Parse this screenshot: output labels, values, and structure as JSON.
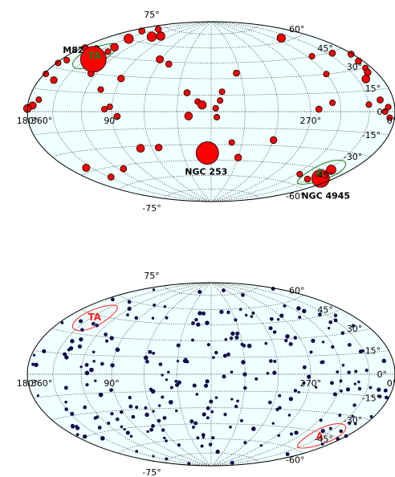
{
  "chart_data": [
    {
      "type": "scatter",
      "projection": "aitoff-hammer",
      "background": "#f0ffff",
      "grid": true,
      "lat_ticks": [
        75,
        60,
        45,
        30,
        15,
        0,
        -15,
        -30,
        -45,
        -60,
        -75
      ],
      "lat_tick_labels": [
        "75°",
        "60°",
        "45°",
        "30°",
        "15°",
        "0°",
        "-15°",
        "-30°",
        "-45°",
        "-60°",
        "-75°"
      ],
      "lon_ticks": [
        360,
        270,
        180,
        90,
        0
      ],
      "lon_tick_labels": [
        "360°",
        "270°",
        "180°",
        "90°",
        "0°"
      ],
      "marker_color": "#ff0000",
      "marker_edge": "#000000",
      "region_color": "#1a7f1a",
      "regions": [
        {
          "label": "TA",
          "lon": 146.7,
          "lat": 43.2,
          "radius_deg": 20
        },
        {
          "label": "A",
          "lon": 209.0,
          "lat": -47.5,
          "radius_deg": 20
        }
      ],
      "named_sources": [
        {
          "label": "M82",
          "lon": 141.4,
          "lat": 40.6,
          "size": 2.6
        },
        {
          "label": "NGC 4945",
          "lon": 305.3,
          "lat": 13.3,
          "map_lon": 197,
          "map_lat": -51,
          "size": 1.6
        },
        {
          "label": "NGC 253",
          "lon": 97.4,
          "lat": -88.0,
          "map_lon": 4,
          "map_lat": -38,
          "size": 2.2
        }
      ],
      "points": [
        [
          147,
          60,
          1.2
        ],
        [
          164,
          67,
          0.6
        ],
        [
          150,
          72,
          0.6
        ],
        [
          121,
          66,
          1.2
        ],
        [
          108,
          68,
          1.0
        ],
        [
          140,
          52,
          0.9
        ],
        [
          138,
          48,
          0.5
        ],
        [
          160,
          48,
          0.5
        ],
        [
          176,
          46,
          0.6
        ],
        [
          182,
          40,
          0.6
        ],
        [
          186,
          35,
          0.6
        ],
        [
          188,
          30,
          0.5
        ],
        [
          191,
          27,
          0.7
        ],
        [
          178,
          33,
          0.5
        ],
        [
          172,
          36,
          0.5
        ],
        [
          228,
          63,
          1.0
        ],
        [
          203,
          44,
          0.6
        ],
        [
          234,
          45,
          0.5
        ],
        [
          240,
          30,
          0.5
        ],
        [
          178,
          25,
          0.5
        ],
        [
          200,
          23,
          0.9
        ],
        [
          162,
          22,
          0.7
        ],
        [
          168,
          8,
          0.5
        ],
        [
          174,
          4,
          0.8
        ],
        [
          180,
          2,
          0.9
        ],
        [
          188,
          3,
          0.5
        ],
        [
          192,
          0,
          0.5
        ],
        [
          186,
          -4,
          0.5
        ],
        [
          196,
          8,
          0.6
        ],
        [
          210,
          5,
          0.5
        ],
        [
          248,
          7,
          0.5
        ],
        [
          262,
          2,
          0.6
        ],
        [
          334,
          35,
          0.6
        ],
        [
          350,
          18,
          0.5
        ],
        [
          352,
          10,
          0.5
        ],
        [
          356,
          3,
          0.5
        ],
        [
          355,
          -5,
          0.5
        ],
        [
          340,
          -28,
          0.5
        ],
        [
          330,
          -42,
          0.7
        ],
        [
          300,
          -25,
          0.7
        ],
        [
          235,
          -52,
          0.5
        ],
        [
          205,
          -44,
          1.2
        ],
        [
          157,
          -42,
          0.8
        ],
        [
          147,
          -52,
          0.6
        ],
        [
          113,
          -48,
          0.6
        ],
        [
          72,
          -32,
          0.9
        ],
        [
          53,
          -32,
          0.7
        ],
        [
          126,
          30,
          0.6
        ],
        [
          105,
          18,
          0.5
        ],
        [
          90,
          28,
          0.7
        ],
        [
          62,
          47,
          0.8
        ],
        [
          48,
          43,
          0.6
        ],
        [
          22,
          17,
          0.6
        ],
        [
          12,
          9,
          0.5
        ],
        [
          8,
          6,
          1.0
        ],
        [
          20,
          -4,
          0.9
        ],
        [
          85,
          -4,
          0.6
        ],
        [
          92,
          4,
          0.5
        ],
        [
          97,
          2,
          0.5
        ],
        [
          212,
          -54,
          0.6
        ]
      ]
    },
    {
      "type": "scatter",
      "projection": "aitoff-hammer",
      "background": "#f0ffff",
      "grid": true,
      "lat_ticks": [
        75,
        60,
        45,
        30,
        15,
        0,
        -15,
        -30,
        -45,
        -60,
        -75
      ],
      "lat_tick_labels": [
        "75°",
        "60°",
        "45°",
        "30°",
        "15°",
        "0°",
        "-15°",
        "-30°",
        "-45°",
        "-60°",
        "-75°"
      ],
      "lon_ticks": [
        360,
        270,
        180,
        90,
        0
      ],
      "lon_tick_labels": [
        "360°",
        "270°",
        "180°",
        "90°",
        "0°"
      ],
      "marker_color": "#0b0b4a",
      "region_color": "#ff2222",
      "regions": [
        {
          "label": "TA",
          "lon": 146.7,
          "lat": 43.2,
          "radius_deg": 20
        },
        {
          "label": "A",
          "lon": 209.0,
          "lat": -47.5,
          "radius_deg": 20
        }
      ]
    }
  ]
}
